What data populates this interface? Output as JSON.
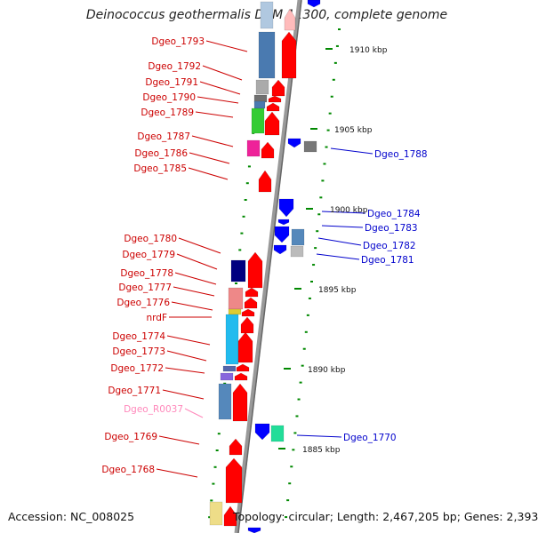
{
  "title": "Deinococcus geothermalis DSM 11300, complete genome",
  "footer": {
    "accession": "Accession: NC_008025",
    "summary": "Topology: circular; Length: 2,467,205 bp; Genes: 2,393"
  },
  "colors": {
    "left_label": "#cc0000",
    "right_label": "#0000cc",
    "rna_label": "#ff88bb",
    "forward_gene": "#ff0000",
    "reverse_gene": "#0000ff",
    "tick": "#008800",
    "backbone": "#888888"
  },
  "ticks": [
    {
      "label": "1910 kbp"
    },
    {
      "label": "1905 kbp"
    },
    {
      "label": "1900 kbp"
    },
    {
      "label": "1895 kbp"
    },
    {
      "label": "1890 kbp"
    },
    {
      "label": "1885 kbp"
    }
  ],
  "left_labels": [
    {
      "text": "Dgeo_1793"
    },
    {
      "text": "Dgeo_1792"
    },
    {
      "text": "Dgeo_1791"
    },
    {
      "text": "Dgeo_1790"
    },
    {
      "text": "Dgeo_1789"
    },
    {
      "text": "Dgeo_1787"
    },
    {
      "text": "Dgeo_1786"
    },
    {
      "text": "Dgeo_1785"
    },
    {
      "text": "Dgeo_1780"
    },
    {
      "text": "Dgeo_1779"
    },
    {
      "text": "Dgeo_1778"
    },
    {
      "text": "Dgeo_1777"
    },
    {
      "text": "Dgeo_1776"
    },
    {
      "text": "nrdF"
    },
    {
      "text": "Dgeo_1774"
    },
    {
      "text": "Dgeo_1773"
    },
    {
      "text": "Dgeo_1772"
    },
    {
      "text": "Dgeo_1771"
    },
    {
      "text": "Dgeo_R0037",
      "rna": true
    },
    {
      "text": "Dgeo_1769"
    },
    {
      "text": "Dgeo_1768"
    }
  ],
  "right_labels": [
    {
      "text": "Dgeo_1788"
    },
    {
      "text": "Dgeo_1784"
    },
    {
      "text": "Dgeo_1783"
    },
    {
      "text": "Dgeo_1782"
    },
    {
      "text": "Dgeo_1781"
    },
    {
      "text": "Dgeo_1770"
    }
  ]
}
